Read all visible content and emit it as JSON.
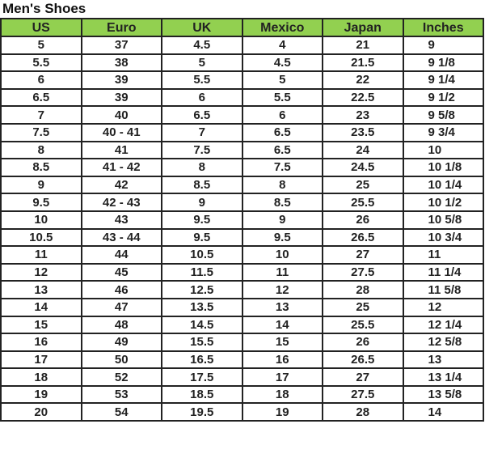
{
  "title": "Men's Shoes",
  "colors": {
    "header_bg": "#92d050",
    "border": "#222222"
  },
  "columns": [
    "US",
    "Euro",
    "UK",
    "Mexico",
    "Japan",
    "Inches"
  ],
  "rows": [
    [
      "5",
      "37",
      "4.5",
      "4",
      "21",
      "9"
    ],
    [
      "5.5",
      "38",
      "5",
      "4.5",
      "21.5",
      "9 1/8"
    ],
    [
      "6",
      "39",
      "5.5",
      "5",
      "22",
      "9 1/4"
    ],
    [
      "6.5",
      "39",
      "6",
      "5.5",
      "22.5",
      "9 1/2"
    ],
    [
      "7",
      "40",
      "6.5",
      "6",
      "23",
      "9 5/8"
    ],
    [
      "7.5",
      "40 - 41",
      "7",
      "6.5",
      "23.5",
      "9 3/4"
    ],
    [
      "8",
      "41",
      "7.5",
      "6.5",
      "24",
      "10"
    ],
    [
      "8.5",
      "41 - 42",
      "8",
      "7.5",
      "24.5",
      "10 1/8"
    ],
    [
      "9",
      "42",
      "8.5",
      "8",
      "25",
      "10 1/4"
    ],
    [
      "9.5",
      "42 - 43",
      "9",
      "8.5",
      "25.5",
      "10 1/2"
    ],
    [
      "10",
      "43",
      "9.5",
      "9",
      "26",
      "10 5/8"
    ],
    [
      "10.5",
      "43 - 44",
      "9.5",
      "9.5",
      "26.5",
      "10 3/4"
    ],
    [
      "11",
      "44",
      "10.5",
      "10",
      "27",
      "11"
    ],
    [
      "12",
      "45",
      "11.5",
      "11",
      "27.5",
      "11 1/4"
    ],
    [
      "13",
      "46",
      "12.5",
      "12",
      "28",
      "11 5/8"
    ],
    [
      "14",
      "47",
      "13.5",
      "13",
      "25",
      "12"
    ],
    [
      "15",
      "48",
      "14.5",
      "14",
      "25.5",
      "12 1/4"
    ],
    [
      "16",
      "49",
      "15.5",
      "15",
      "26",
      "12 5/8"
    ],
    [
      "17",
      "50",
      "16.5",
      "16",
      "26.5",
      "13"
    ],
    [
      "18",
      "52",
      "17.5",
      "17",
      "27",
      "13 1/4"
    ],
    [
      "19",
      "53",
      "18.5",
      "18",
      "27.5",
      "13 5/8"
    ],
    [
      "20",
      "54",
      "19.5",
      "19",
      "28",
      "14"
    ]
  ]
}
